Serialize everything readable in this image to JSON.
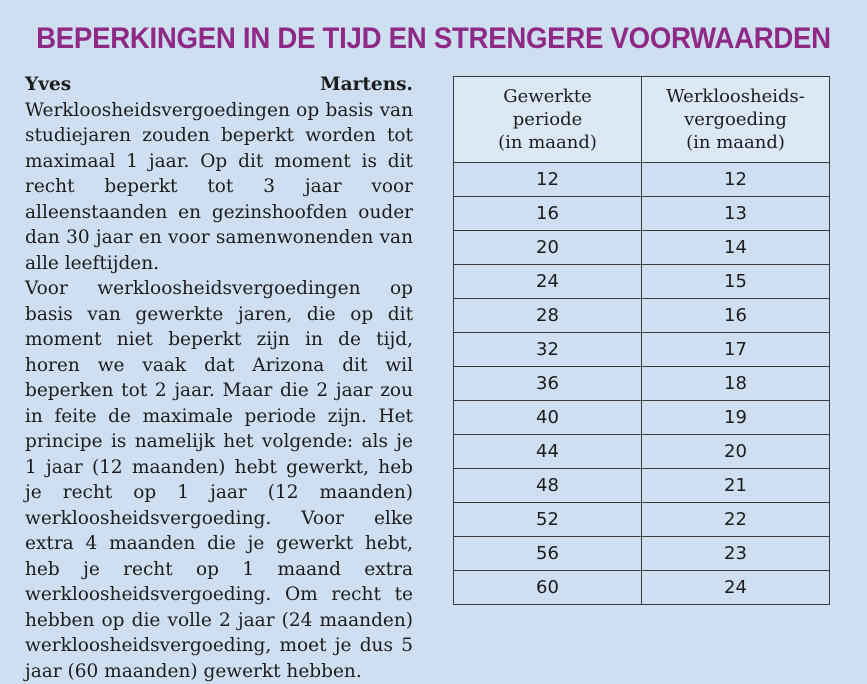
{
  "title": "BEPERKINGEN IN DE TIJD EN STRENGERE VOORWAARDEN",
  "article": {
    "author": "Yves Martens.",
    "paragraph1": "Werkloosheidsvergoedingen op basis van studiejaren zouden beperkt worden tot maximaal 1 jaar. Op dit moment is dit recht beperkt tot 3 jaar voor alleenstaanden en gezinshoofden ouder dan 30 jaar en voor samenwonenden van alle leeftijden.",
    "paragraph2": "Voor werkloosheidsvergoedingen op basis van gewerkte jaren, die op dit moment niet beperkt zijn in de tijd, horen we vaak dat Arizona dit wil beperken tot 2 jaar. Maar die 2 jaar zou in feite de maximale periode zijn. Het principe is namelijk het volgende: als je 1 jaar (12 maanden) hebt gewerkt, heb je recht op 1 jaar (12 maanden) werkloosheidsvergoeding. Voor elke extra 4 maanden die je gewerkt hebt, heb je recht op 1 maand extra werkloosheidsvergoeding. Om recht te hebben op die volle 2 jaar (24 maanden) werkloosheidsvergoeding, moet je dus 5 jaar (60 maanden) gewerkt hebben."
  },
  "table": {
    "headers": [
      [
        "Gewerkte",
        "periode",
        "(in maand)"
      ],
      [
        "Werkloosheids-",
        "vergoeding",
        "(in maand)"
      ]
    ],
    "rows": [
      [
        "12",
        "12"
      ],
      [
        "16",
        "13"
      ],
      [
        "20",
        "14"
      ],
      [
        "24",
        "15"
      ],
      [
        "28",
        "16"
      ],
      [
        "32",
        "17"
      ],
      [
        "36",
        "18"
      ],
      [
        "40",
        "19"
      ],
      [
        "44",
        "20"
      ],
      [
        "48",
        "21"
      ],
      [
        "52",
        "22"
      ],
      [
        "56",
        "23"
      ],
      [
        "60",
        "24"
      ]
    ]
  }
}
